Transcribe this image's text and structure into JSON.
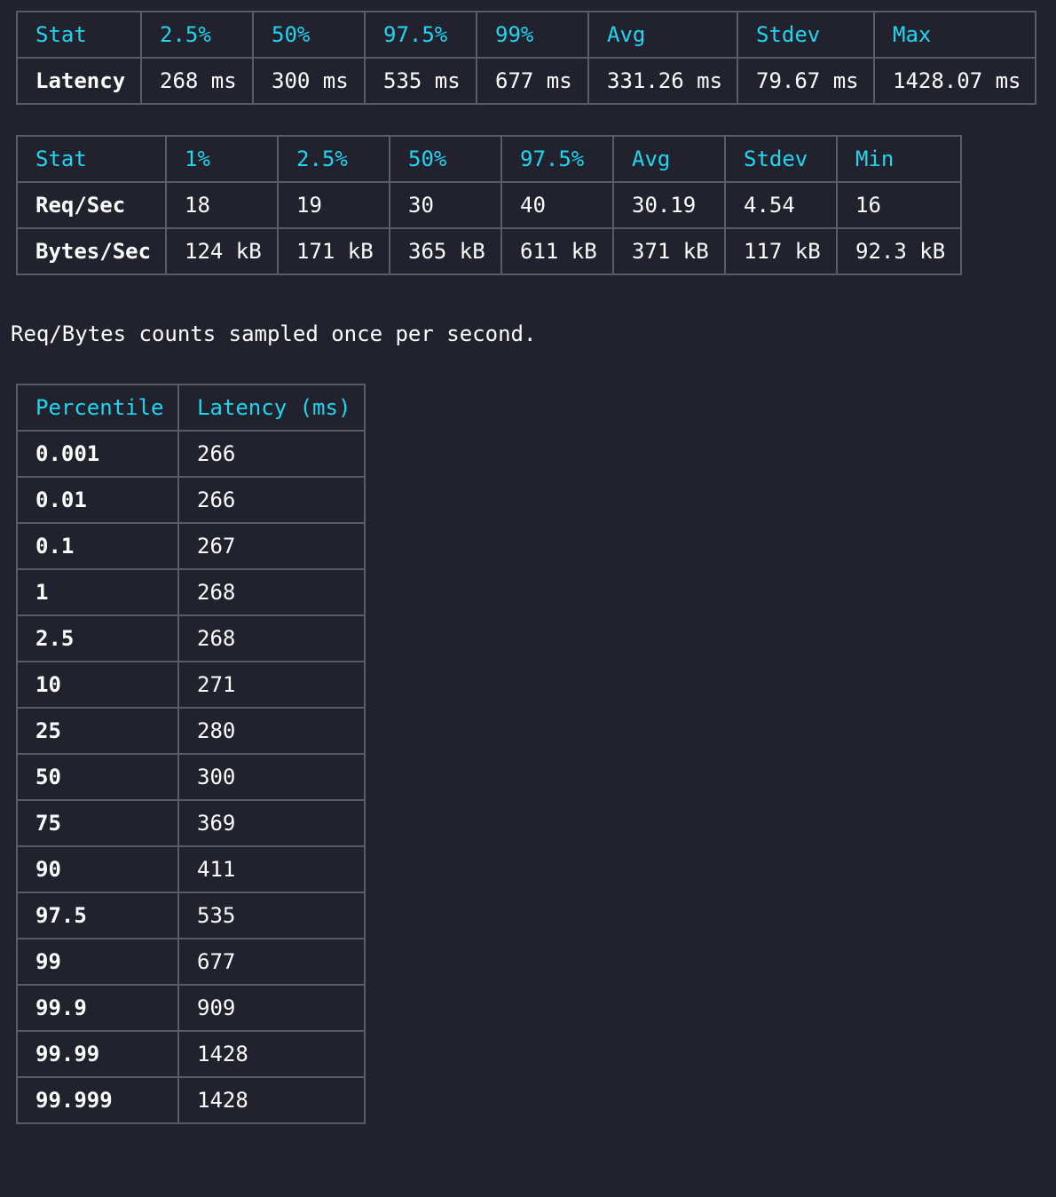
{
  "latency_table": {
    "headers": [
      "Stat",
      "2.5%",
      "50%",
      "97.5%",
      "99%",
      "Avg",
      "Stdev",
      "Max"
    ],
    "rows": [
      [
        "Latency",
        "268 ms",
        "300 ms",
        "535 ms",
        "677 ms",
        "331.26 ms",
        "79.67 ms",
        "1428.07 ms"
      ]
    ]
  },
  "throughput_table": {
    "headers": [
      "Stat",
      "1%",
      "2.5%",
      "50%",
      "97.5%",
      "Avg",
      "Stdev",
      "Min"
    ],
    "rows": [
      [
        "Req/Sec",
        "18",
        "19",
        "30",
        "40",
        "30.19",
        "4.54",
        "16"
      ],
      [
        "Bytes/Sec",
        "124 kB",
        "171 kB",
        "365 kB",
        "611 kB",
        "371 kB",
        "117 kB",
        "92.3 kB"
      ]
    ]
  },
  "note": "Req/Bytes counts sampled once per second.",
  "percentile_table": {
    "headers": [
      "Percentile",
      "Latency (ms)"
    ],
    "rows": [
      [
        "0.001",
        "266"
      ],
      [
        "0.01",
        "266"
      ],
      [
        "0.1",
        "267"
      ],
      [
        "1",
        "268"
      ],
      [
        "2.5",
        "268"
      ],
      [
        "10",
        "271"
      ],
      [
        "25",
        "280"
      ],
      [
        "50",
        "300"
      ],
      [
        "75",
        "369"
      ],
      [
        "90",
        "411"
      ],
      [
        "97.5",
        "535"
      ],
      [
        "99",
        "677"
      ],
      [
        "99.9",
        "909"
      ],
      [
        "99.99",
        "1428"
      ],
      [
        "99.999",
        "1428"
      ]
    ]
  },
  "colors": {
    "background": "#22212e",
    "header_text": "#1fd6f0",
    "body_text": "#ffffff",
    "border": "#5b5b63"
  }
}
